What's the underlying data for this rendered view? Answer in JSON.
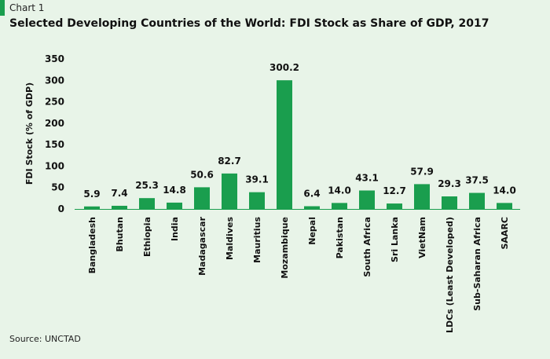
{
  "header": {
    "label": "Chart 1",
    "title": "Selected Developing Countries of the World: FDI Stock as Share of GDP, 2017"
  },
  "footer": {
    "source": "Source: UNCTAD"
  },
  "colors": {
    "bar": "#1a9e4e",
    "background": "#e8f4e8"
  },
  "chart_data": {
    "type": "bar",
    "title": "Selected Developing Countries of the World: FDI Stock as Share of GDP, 2017",
    "xlabel": "",
    "ylabel": "FDI Stock (% of GDP)",
    "ylim": [
      0,
      350
    ],
    "yticks": [
      0,
      50,
      100,
      150,
      200,
      250,
      300,
      350
    ],
    "grid": false,
    "categories": [
      "Bangladesh",
      "Bhutan",
      "Ethiopia",
      "India",
      "Madagascar",
      "Maldives",
      "Mauritius",
      "Mozambique",
      "Nepal",
      "Pakistan",
      "South Africa",
      "Sri Lanka",
      "VietNam",
      "LDCs (Least Developed)",
      "Sub-Saharan Africa",
      "SAARC"
    ],
    "values": [
      5.9,
      7.4,
      25.3,
      14.8,
      50.6,
      82.7,
      39.1,
      300.2,
      6.4,
      14.0,
      43.1,
      12.7,
      57.9,
      29.3,
      37.5,
      14.0
    ],
    "value_labels": [
      "5.9",
      "7.4",
      "25.3",
      "14.8",
      "50.6",
      "82.7",
      "39.1",
      "300.2",
      "6.4",
      "14.0",
      "43.1",
      "12.7",
      "57.9",
      "29.3",
      "37.5",
      "14.0"
    ]
  }
}
